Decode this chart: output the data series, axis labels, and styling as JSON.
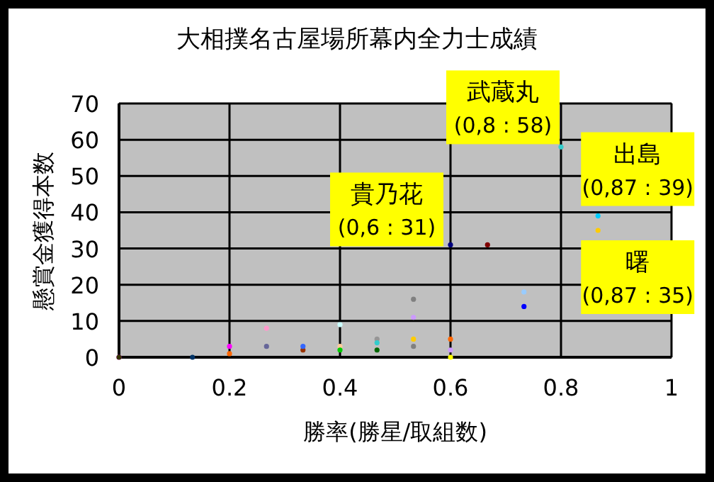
{
  "chart_data": {
    "type": "scatter",
    "title": "大相撲名古屋場所幕内全力士成績",
    "xlabel": "勝率(勝星/取組数)",
    "ylabel": "懸賞金獲得本数",
    "x": [
      0,
      0,
      0.133,
      0.2,
      0.2,
      0.267,
      0.267,
      0.333,
      0.333,
      0.4,
      0.4,
      0.4,
      0.467,
      0.467,
      0.467,
      0.533,
      0.533,
      0.533,
      0.533,
      0.6,
      0.6,
      0.6,
      0.6,
      0.667,
      0.733,
      0.733,
      0.8,
      0.867,
      0.867
    ],
    "values": [
      0,
      0,
      0,
      3,
      1,
      8,
      3,
      2,
      3,
      9,
      3,
      2,
      5,
      4,
      2,
      16,
      11,
      5,
      3,
      31,
      5,
      2,
      0,
      31,
      18,
      14,
      58,
      39,
      35
    ],
    "colors": [
      "#ff00ff",
      "#333300",
      "#003366",
      "#ff00ff",
      "#ff6600",
      "#ff99cc",
      "#666699",
      "#993300",
      "#3366ff",
      "#ccffff",
      "#ffcc99",
      "#00cc00",
      "#969696",
      "#33cccc",
      "#006600",
      "#808080",
      "#cc99ff",
      "#ffcc00",
      "#808080",
      "#000080",
      "#ff6600",
      "#cc99ff",
      "#ffff00",
      "#800000",
      "#99ccff",
      "#0000ff",
      "#33cccc",
      "#00ccff",
      "#ffcc00"
    ],
    "marker": "circle",
    "xlim": [
      0,
      1
    ],
    "xticks": [
      0,
      0.2,
      0.4,
      0.6,
      0.8,
      1
    ],
    "ylim": [
      0,
      70
    ],
    "yticks": [
      0,
      10,
      20,
      30,
      40,
      50,
      60,
      70
    ],
    "grid": true,
    "annotations": [
      {
        "text": "武蔵丸\n(0,8 : 58)",
        "x": 0.8,
        "y": 58
      },
      {
        "text": "出島\n(0,87 : 39)",
        "x": 0.867,
        "y": 39
      },
      {
        "text": "貴乃花\n(0,6 : 31)",
        "x": 0.6,
        "y": 31
      },
      {
        "text": "曙\n(0,87 : 35)",
        "x": 0.867,
        "y": 35
      }
    ]
  }
}
